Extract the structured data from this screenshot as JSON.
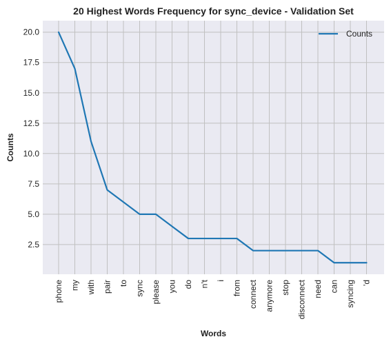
{
  "chart_data": {
    "type": "line",
    "title": "20 Highest Words Frequency for sync_device - Validation Set",
    "xlabel": "Words",
    "ylabel": "Counts",
    "categories": [
      "phone",
      "my",
      "with",
      "pair",
      "to",
      "sync",
      "please",
      "you",
      "do",
      "n't",
      "i",
      "from",
      "connect",
      "anymore",
      "stop",
      "disconnect",
      "need",
      "can",
      "syncing",
      "'d"
    ],
    "series": [
      {
        "name": "Counts",
        "values": [
          20,
          17,
          11,
          7,
          6,
          5,
          5,
          4,
          3,
          3,
          3,
          3,
          2,
          2,
          2,
          2,
          2,
          1,
          1,
          1
        ]
      }
    ],
    "ylim": [
      0.05,
      20.95
    ],
    "yticks": [
      2.5,
      5.0,
      7.5,
      10.0,
      12.5,
      15.0,
      17.5,
      20.0
    ],
    "ytick_labels": [
      "2.5",
      "5.0",
      "7.5",
      "10.0",
      "12.5",
      "15.0",
      "17.5",
      "20.0"
    ],
    "grid": true,
    "legend_position": "top-right",
    "colors": {
      "line": "#1f77b4",
      "plot_background": "#eaeaf2",
      "grid": "#c0c0c0"
    }
  }
}
